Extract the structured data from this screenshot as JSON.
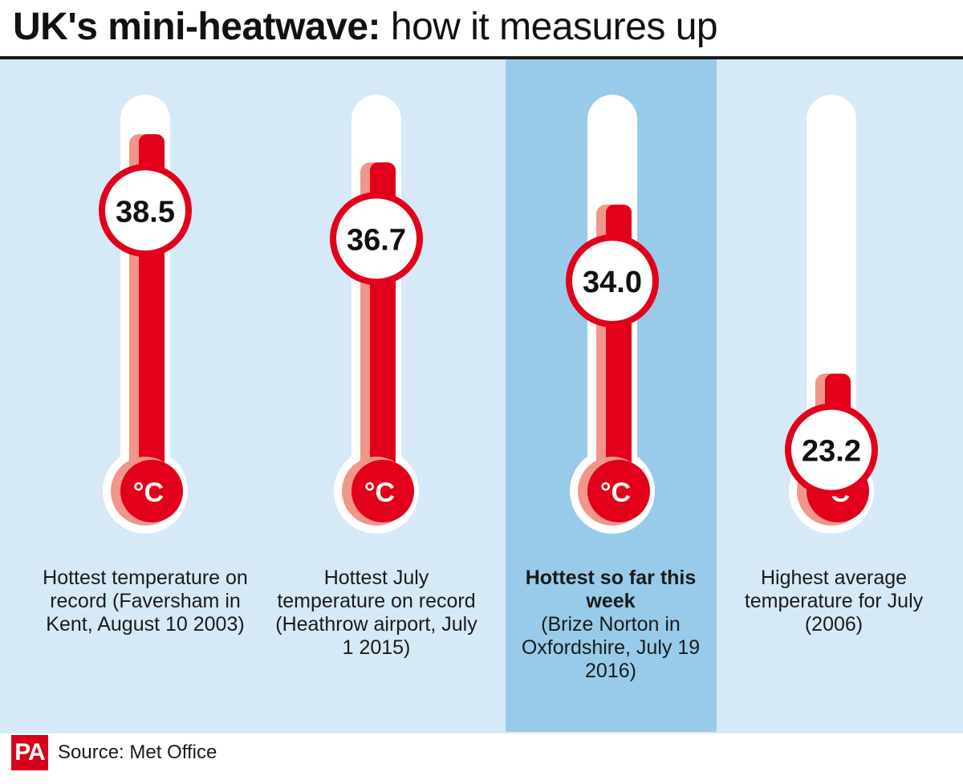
{
  "title": {
    "bold": "UK's mini-heatwave:",
    "light": "how it measures up"
  },
  "unit_label": "°C",
  "colors": {
    "mercury": "#e2001a",
    "mercury_light": "#f0968a",
    "tube": "#ffffff",
    "background": "#d6e9f6",
    "highlight": "#98cbea"
  },
  "chart_data": {
    "type": "bar",
    "categories": [
      "Hottest temperature on record (Faversham in Kent, August 10 2003)",
      "Hottest July temperature on record (Heathrow airport, July 1 2015)",
      "Hottest so far this week (Brize Norton in Oxfordshire, July 19 2016)",
      "Highest average temperature for July (2006)"
    ],
    "values": [
      38.5,
      36.7,
      34.0,
      23.2
    ],
    "value_labels": [
      "38.5",
      "36.7",
      "34.0",
      "23.2"
    ],
    "unit": "°C",
    "highlighted_index": 2
  },
  "captions": [
    {
      "bold": "",
      "text": "Hottest temperature on record (Faversham in Kent, August 10 2003)"
    },
    {
      "bold": "",
      "text": "Hottest July temperature on record (Heathrow airport, July 1 2015)"
    },
    {
      "bold": "Hottest so far this week",
      "text": "(Brize Norton in Oxfordshire, July 19 2016)"
    },
    {
      "bold": "",
      "text": "Highest average temperature for July (2006)"
    }
  ],
  "footer": {
    "logo": "PA",
    "source": "Source: Met Office"
  }
}
